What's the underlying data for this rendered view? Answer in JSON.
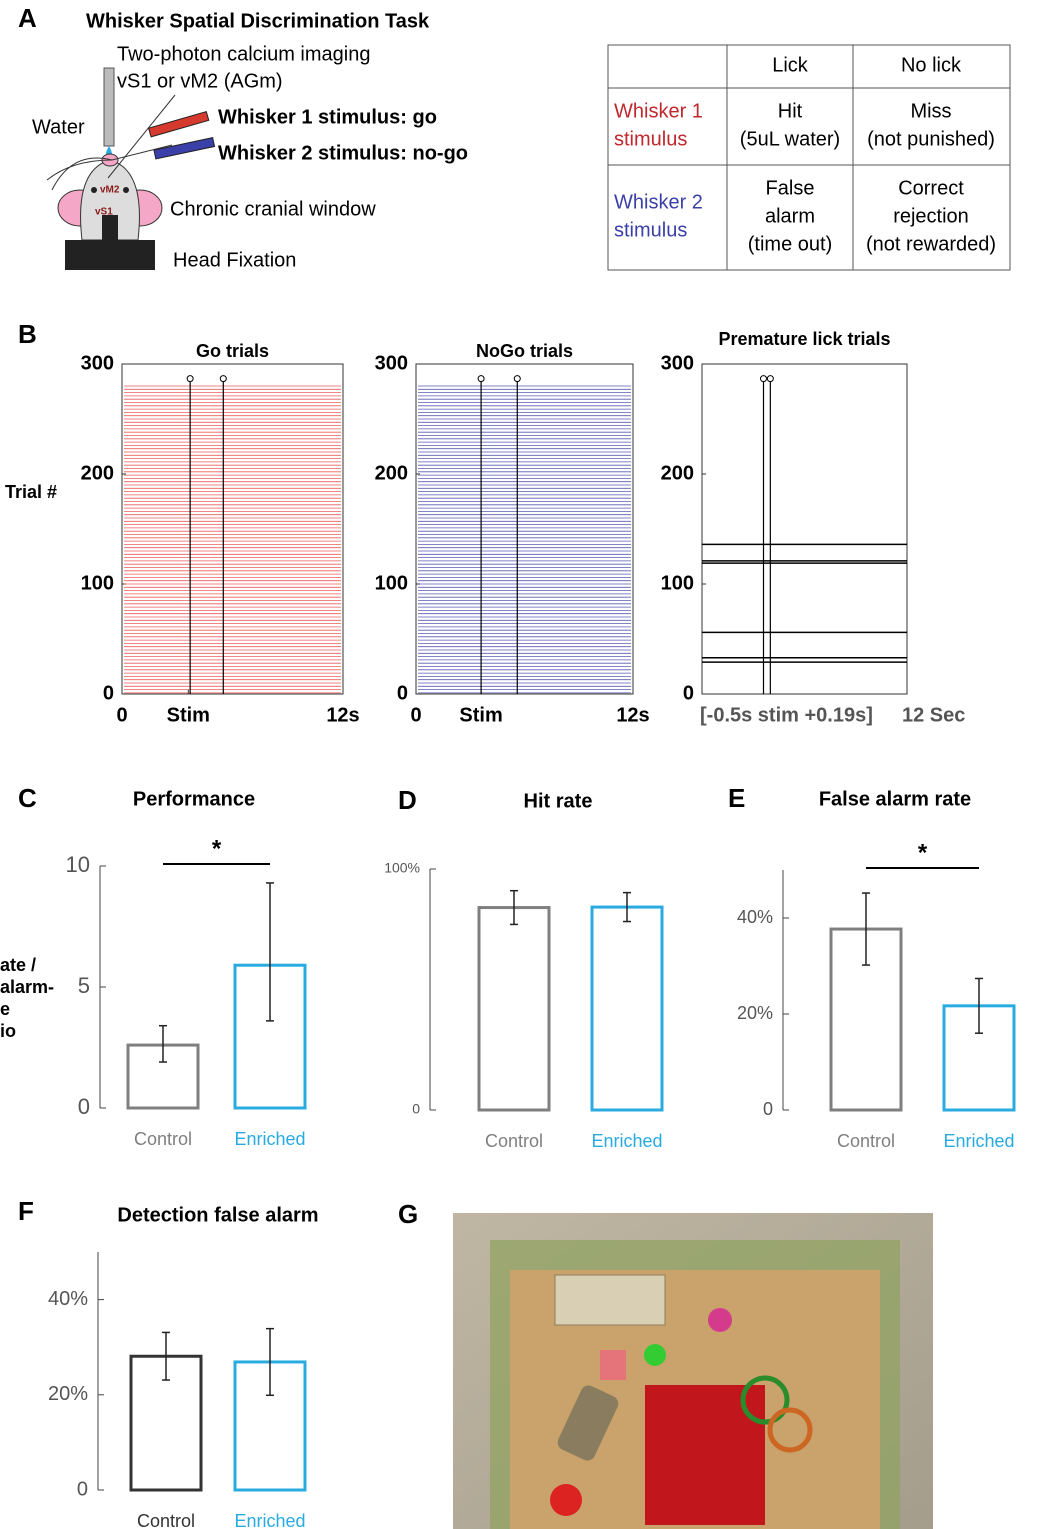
{
  "panel_a": {
    "label": "A",
    "title": "Whisker Spatial Discrimination Task",
    "imaging": [
      "Two-photon calcium imaging",
      "vS1 or vM2 (AGm)"
    ],
    "water": "Water",
    "stim1": "Whisker 1 stimulus: go",
    "stim2": "Whisker 2 stimulus: no-go",
    "window": "Chronic cranial window",
    "fixation": "Head Fixation",
    "vm2": "vM2",
    "vs1": "vS1",
    "table": {
      "header": [
        "Lick",
        "No lick"
      ],
      "rows": [
        {
          "label": [
            "Whisker 1",
            "stimulus"
          ],
          "color": "#c1272d",
          "cells": [
            [
              "Hit",
              "(5uL water)"
            ],
            [
              "Miss",
              "(not punished)"
            ]
          ]
        },
        {
          "label": [
            "Whisker 2",
            "stimulus"
          ],
          "color": "#3b3fa8",
          "cells": [
            [
              "False",
              "alarm",
              "(time out)"
            ],
            [
              "Correct",
              "rejection",
              "(not rewarded)"
            ]
          ]
        }
      ]
    }
  },
  "panel_b": {
    "label": "B",
    "ylabel": "Trial #"
  },
  "panel_c": {
    "label": "C"
  },
  "panel_d": {
    "label": "D"
  },
  "panel_e": {
    "label": "E"
  },
  "panel_f": {
    "label": "F"
  },
  "panel_g": {
    "label": "G"
  },
  "chart_data": [
    {
      "type": "raster",
      "title": "Go trials",
      "color": "#e8423f",
      "xlim": [
        0,
        12
      ],
      "ylim": [
        0,
        300
      ],
      "yticks": [
        0,
        100,
        200,
        300
      ],
      "xticks": [
        0,
        {
          "value": 3.6,
          "label": "Stim"
        },
        {
          "value": 12,
          "label": "12s"
        }
      ],
      "trials": 282,
      "events": [
        3.7,
        5.5
      ],
      "marker_y": 284
    },
    {
      "type": "raster",
      "title": "NoGo trials",
      "color": "#3b3fa8",
      "xlim": [
        0,
        12
      ],
      "ylim": [
        0,
        300
      ],
      "yticks": [
        0,
        100,
        200,
        300
      ],
      "xticks": [
        0,
        {
          "value": 3.6,
          "label": "Stim"
        },
        {
          "value": 12,
          "label": "12s"
        }
      ],
      "trials": 282,
      "events": [
        3.6,
        5.6
      ],
      "marker_y": 284
    },
    {
      "type": "raster",
      "title": "Premature lick trials",
      "color": "#000000",
      "xlim": [
        0,
        12
      ],
      "ylim": [
        0,
        300
      ],
      "yticks": [
        0,
        100,
        200,
        300
      ],
      "xlabels": [
        "[-0.5s stim +0.19s]",
        "12 Sec"
      ],
      "trial_lines": [
        29,
        33,
        56,
        119,
        121,
        136
      ],
      "events": [
        3.6,
        4.0
      ],
      "marker_y": 284
    },
    {
      "type": "bar",
      "title": "Performance",
      "ylabel": [
        "ate /",
        "alarm-",
        "e",
        "io"
      ],
      "categories": [
        "Control",
        "Enriched"
      ],
      "colors": [
        "#7f7f7f",
        "#29abe2"
      ],
      "values": [
        2.6,
        5.9
      ],
      "error_low": [
        0.7,
        2.3
      ],
      "error_high": [
        0.8,
        3.4
      ],
      "ylim": [
        0,
        10
      ],
      "yticks": [
        0,
        5,
        10
      ],
      "significance": "*"
    },
    {
      "type": "bar",
      "title": "Hit rate",
      "categories": [
        "Control",
        "Enriched"
      ],
      "colors": [
        "#7f7f7f",
        "#29abe2"
      ],
      "values": [
        84,
        84.2
      ],
      "error_low": [
        7,
        6
      ],
      "error_high": [
        7,
        6
      ],
      "ylim": [
        0,
        100
      ],
      "yticks": [
        0,
        {
          "value": 100,
          "label": "100%"
        }
      ]
    },
    {
      "type": "bar",
      "title": "False alarm rate",
      "categories": [
        "Control",
        "Enriched"
      ],
      "colors": [
        "#7f7f7f",
        "#29abe2"
      ],
      "values": [
        37.7,
        21.7
      ],
      "error_low": [
        7.5,
        5.7
      ],
      "error_high": [
        7.5,
        5.7
      ],
      "ylim": [
        0,
        50
      ],
      "yticks": [
        0,
        {
          "value": 20,
          "label": "20%"
        },
        {
          "value": 40,
          "label": "40%"
        }
      ],
      "significance": "*"
    },
    {
      "type": "bar",
      "title": "Detection false alarm",
      "categories": [
        "Control",
        "Enriched"
      ],
      "colors": [
        "#333333",
        "#29abe2"
      ],
      "values": [
        28.1,
        26.9
      ],
      "error_low": [
        5,
        7
      ],
      "error_high": [
        5,
        7
      ],
      "ylim": [
        0,
        50
      ],
      "yticks": [
        0,
        {
          "value": 20,
          "label": "20%"
        },
        {
          "value": 40,
          "label": "40%"
        }
      ]
    }
  ]
}
